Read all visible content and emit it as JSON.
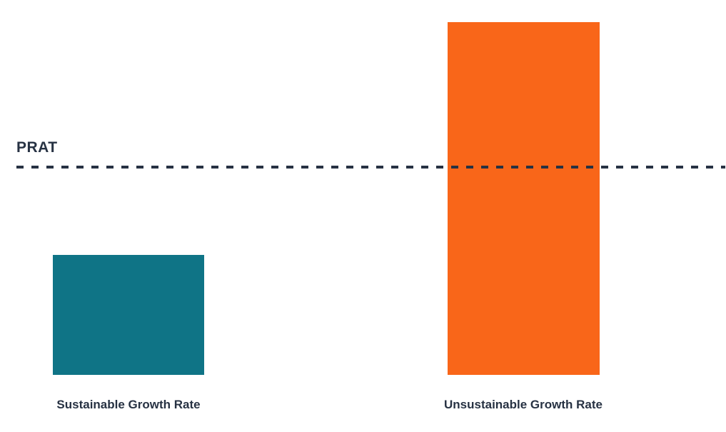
{
  "chart_data": {
    "type": "bar",
    "title": "",
    "categories": [
      "Sustainable Growth Rate",
      "Unsustainable Growth Rate"
    ],
    "values": [
      34,
      100
    ],
    "series_colors": [
      "#0F7486",
      "#F96619"
    ],
    "ylim": [
      0,
      100
    ],
    "units": "relative height (no numeric axis shown in chart)",
    "axes": {
      "x_axis_visible": false,
      "y_axis_visible": false,
      "grid": false
    },
    "value_labels_visible": false,
    "legend": "none",
    "threshold_line": {
      "label": "PRAT",
      "value": 59,
      "style": "dashed",
      "color": "#273243"
    }
  },
  "colors": {
    "background": "#FFFFFF",
    "label_text": "#273243",
    "bar_sustainable": "#0F7486",
    "bar_unsustainable": "#F96619",
    "threshold": "#273243"
  }
}
